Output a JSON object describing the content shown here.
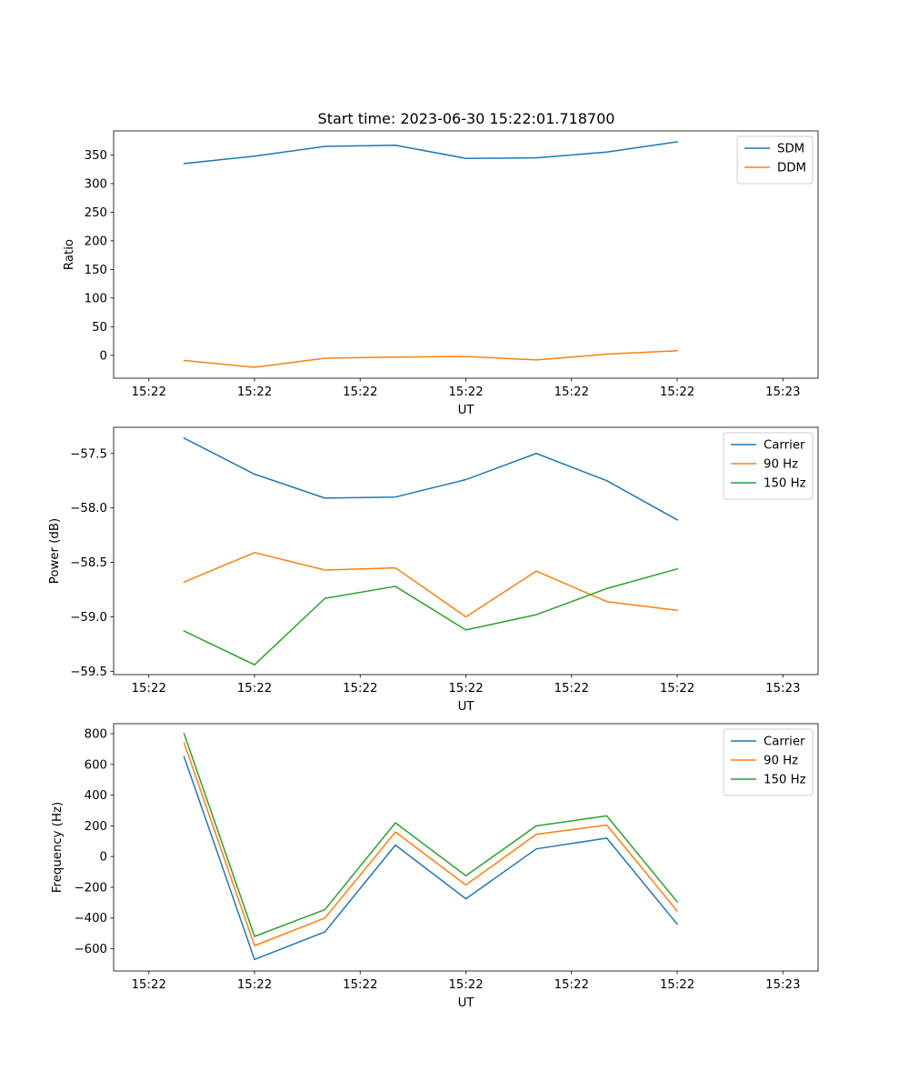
{
  "title": "Start time: 2023-06-30 15:22:01.718700",
  "chart_data": [
    {
      "type": "line",
      "title": "Start time: 2023-06-30 15:22:01.718700",
      "xlabel": "UT",
      "ylabel": "Ratio",
      "x": [
        1,
        2,
        3,
        4,
        5,
        6,
        7,
        8
      ],
      "xlim": [
        0,
        10
      ],
      "x_ticks": [
        0.5,
        2.0,
        3.5,
        5.0,
        6.5,
        8.0,
        9.5
      ],
      "x_tick_labels": [
        "15:22",
        "15:22",
        "15:22",
        "15:22",
        "15:22",
        "15:22",
        "15:23"
      ],
      "ylim": [
        -40,
        392
      ],
      "y_ticks": [
        0,
        50,
        100,
        150,
        200,
        250,
        300,
        350
      ],
      "y_tick_labels": [
        "0",
        "50",
        "100",
        "150",
        "200",
        "250",
        "300",
        "350"
      ],
      "series": [
        {
          "name": "SDM",
          "color": "#1f77b4",
          "values": [
            335,
            348,
            365,
            367,
            344,
            345,
            355,
            373
          ]
        },
        {
          "name": "DDM",
          "color": "#ff7f0e",
          "values": [
            -9,
            -21,
            -5,
            -3,
            -2,
            -8,
            2,
            8
          ]
        }
      ],
      "legend": "top-right",
      "grid": false
    },
    {
      "type": "line",
      "title": "",
      "xlabel": "UT",
      "ylabel": "Power (dB)",
      "x": [
        1,
        2,
        3,
        4,
        5,
        6,
        7,
        8
      ],
      "xlim": [
        0,
        10
      ],
      "x_ticks": [
        0.5,
        2.0,
        3.5,
        5.0,
        6.5,
        8.0,
        9.5
      ],
      "x_tick_labels": [
        "15:22",
        "15:22",
        "15:22",
        "15:22",
        "15:22",
        "15:22",
        "15:23"
      ],
      "ylim": [
        -59.53,
        -57.26
      ],
      "y_ticks": [
        -59.5,
        -59.0,
        -58.5,
        -58.0,
        -57.5
      ],
      "y_tick_labels": [
        "−59.5",
        "−59.0",
        "−58.5",
        "−58.0",
        "−57.5"
      ],
      "series": [
        {
          "name": "Carrier",
          "color": "#1f77b4",
          "values": [
            -57.36,
            -57.69,
            -57.91,
            -57.9,
            -57.74,
            -57.5,
            -57.75,
            -58.11
          ]
        },
        {
          "name": "90 Hz",
          "color": "#ff7f0e",
          "values": [
            -58.68,
            -58.41,
            -58.57,
            -58.55,
            -59.0,
            -58.58,
            -58.86,
            -58.94
          ]
        },
        {
          "name": "150 Hz",
          "color": "#2ca02c",
          "values": [
            -59.13,
            -59.44,
            -58.83,
            -58.72,
            -59.12,
            -58.98,
            -58.74,
            -58.56
          ]
        }
      ],
      "legend": "top-right",
      "grid": false
    },
    {
      "type": "line",
      "title": "",
      "xlabel": "UT",
      "ylabel": "Frequency (Hz)",
      "x": [
        1,
        2,
        3,
        4,
        5,
        6,
        7,
        8
      ],
      "xlim": [
        0,
        10
      ],
      "x_ticks": [
        0.5,
        2.0,
        3.5,
        5.0,
        6.5,
        8.0,
        9.5
      ],
      "x_tick_labels": [
        "15:22",
        "15:22",
        "15:22",
        "15:22",
        "15:22",
        "15:22",
        "15:23"
      ],
      "ylim": [
        -745,
        865
      ],
      "y_ticks": [
        -600,
        -400,
        -200,
        0,
        200,
        400,
        600,
        800
      ],
      "y_tick_labels": [
        "−600",
        "−400",
        "−200",
        "0",
        "200",
        "400",
        "600",
        "800"
      ],
      "series": [
        {
          "name": "Carrier",
          "color": "#1f77b4",
          "values": [
            650,
            -670,
            -490,
            75,
            -275,
            50,
            120,
            -440
          ]
        },
        {
          "name": "90 Hz",
          "color": "#ff7f0e",
          "values": [
            740,
            -580,
            -400,
            160,
            -185,
            145,
            205,
            -355
          ]
        },
        {
          "name": "150 Hz",
          "color": "#2ca02c",
          "values": [
            800,
            -520,
            -345,
            220,
            -125,
            200,
            265,
            -295
          ]
        }
      ],
      "legend": "top-right",
      "grid": false
    }
  ]
}
